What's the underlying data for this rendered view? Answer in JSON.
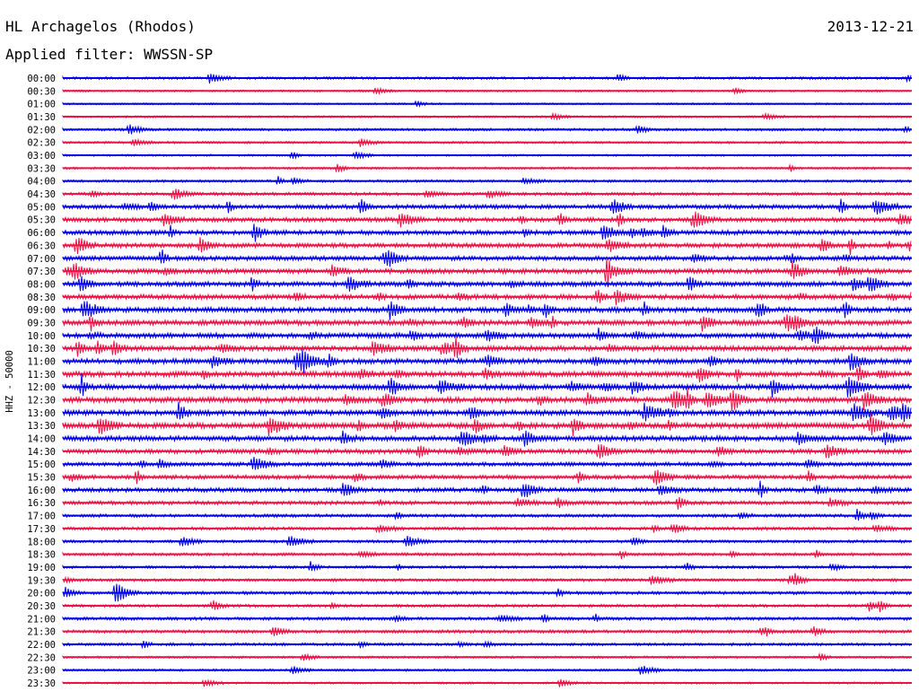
{
  "header": {
    "station": "HL Archagelos (Rhodos)",
    "filter": "Applied filter: WWSSN-SP",
    "date": "2013-12-21"
  },
  "colors": {
    "series_a": "#0000ee",
    "series_b": "#ee1144",
    "background": "#ffffff",
    "text": "#000000"
  },
  "chart_data": {
    "type": "line",
    "ylabel": "HHZ - 50000",
    "xlabel": "",
    "title": "",
    "grid": false,
    "row_labels": [
      "00:00",
      "00:30",
      "01:00",
      "01:30",
      "02:00",
      "02:30",
      "03:00",
      "03:30",
      "04:00",
      "04:30",
      "05:00",
      "05:30",
      "06:00",
      "06:30",
      "07:00",
      "07:30",
      "08:00",
      "08:30",
      "09:00",
      "09:30",
      "10:00",
      "10:30",
      "11:00",
      "11:30",
      "12:00",
      "12:30",
      "13:00",
      "13:30",
      "14:00",
      "14:30",
      "15:00",
      "15:30",
      "16:00",
      "16:30",
      "17:00",
      "17:30",
      "18:00",
      "18:30",
      "19:00",
      "19:30",
      "20:00",
      "20:30",
      "21:00",
      "21:30",
      "22:00",
      "22:30",
      "23:00",
      "23:30"
    ],
    "row_activity": [
      0.25,
      0.15,
      0.12,
      0.15,
      0.25,
      0.2,
      0.15,
      0.2,
      0.25,
      0.35,
      0.55,
      0.55,
      0.6,
      0.6,
      0.6,
      0.65,
      0.65,
      0.65,
      0.7,
      0.7,
      0.7,
      0.7,
      0.7,
      0.75,
      0.75,
      0.75,
      0.75,
      0.8,
      0.7,
      0.6,
      0.5,
      0.5,
      0.55,
      0.45,
      0.35,
      0.35,
      0.3,
      0.3,
      0.3,
      0.3,
      0.35,
      0.3,
      0.35,
      0.35,
      0.3,
      0.2,
      0.2,
      0.15
    ],
    "row_color_pattern": [
      "series_a",
      "series_b"
    ]
  }
}
